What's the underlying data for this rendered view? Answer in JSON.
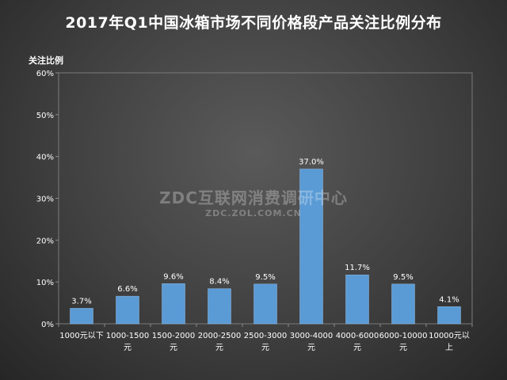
{
  "chart_data": {
    "type": "bar",
    "title": "2017年Q1中国冰箱市场不同价格段产品关注比例分布",
    "ylabel": "关注比例",
    "xlabel": "",
    "ylim": [
      0,
      60
    ],
    "yticks": [
      "0%",
      "10%",
      "20%",
      "30%",
      "40%",
      "50%",
      "60%"
    ],
    "categories": [
      [
        "1000元以下"
      ],
      [
        "1000-1500",
        "元"
      ],
      [
        "1500-2000",
        "元"
      ],
      [
        "2000-2500",
        "元"
      ],
      [
        "2500-3000",
        "元"
      ],
      [
        "3000-4000",
        "元"
      ],
      [
        "4000-6000",
        "元"
      ],
      [
        "6000-10000",
        "元"
      ],
      [
        "10000元以",
        "上"
      ]
    ],
    "values": [
      3.7,
      6.6,
      9.6,
      8.4,
      9.5,
      37.0,
      11.7,
      9.5,
      4.1
    ],
    "value_labels": [
      "3.7%",
      "6.6%",
      "9.6%",
      "8.4%",
      "9.5%",
      "37.0%",
      "11.7%",
      "9.5%",
      "4.1%"
    ],
    "grid": false,
    "legend": "none",
    "bar_color": "#5b9bd5"
  },
  "watermark": {
    "main": "ZDC互联网消费调研中心",
    "sub": "ZDC.ZOL.COM.CN"
  }
}
